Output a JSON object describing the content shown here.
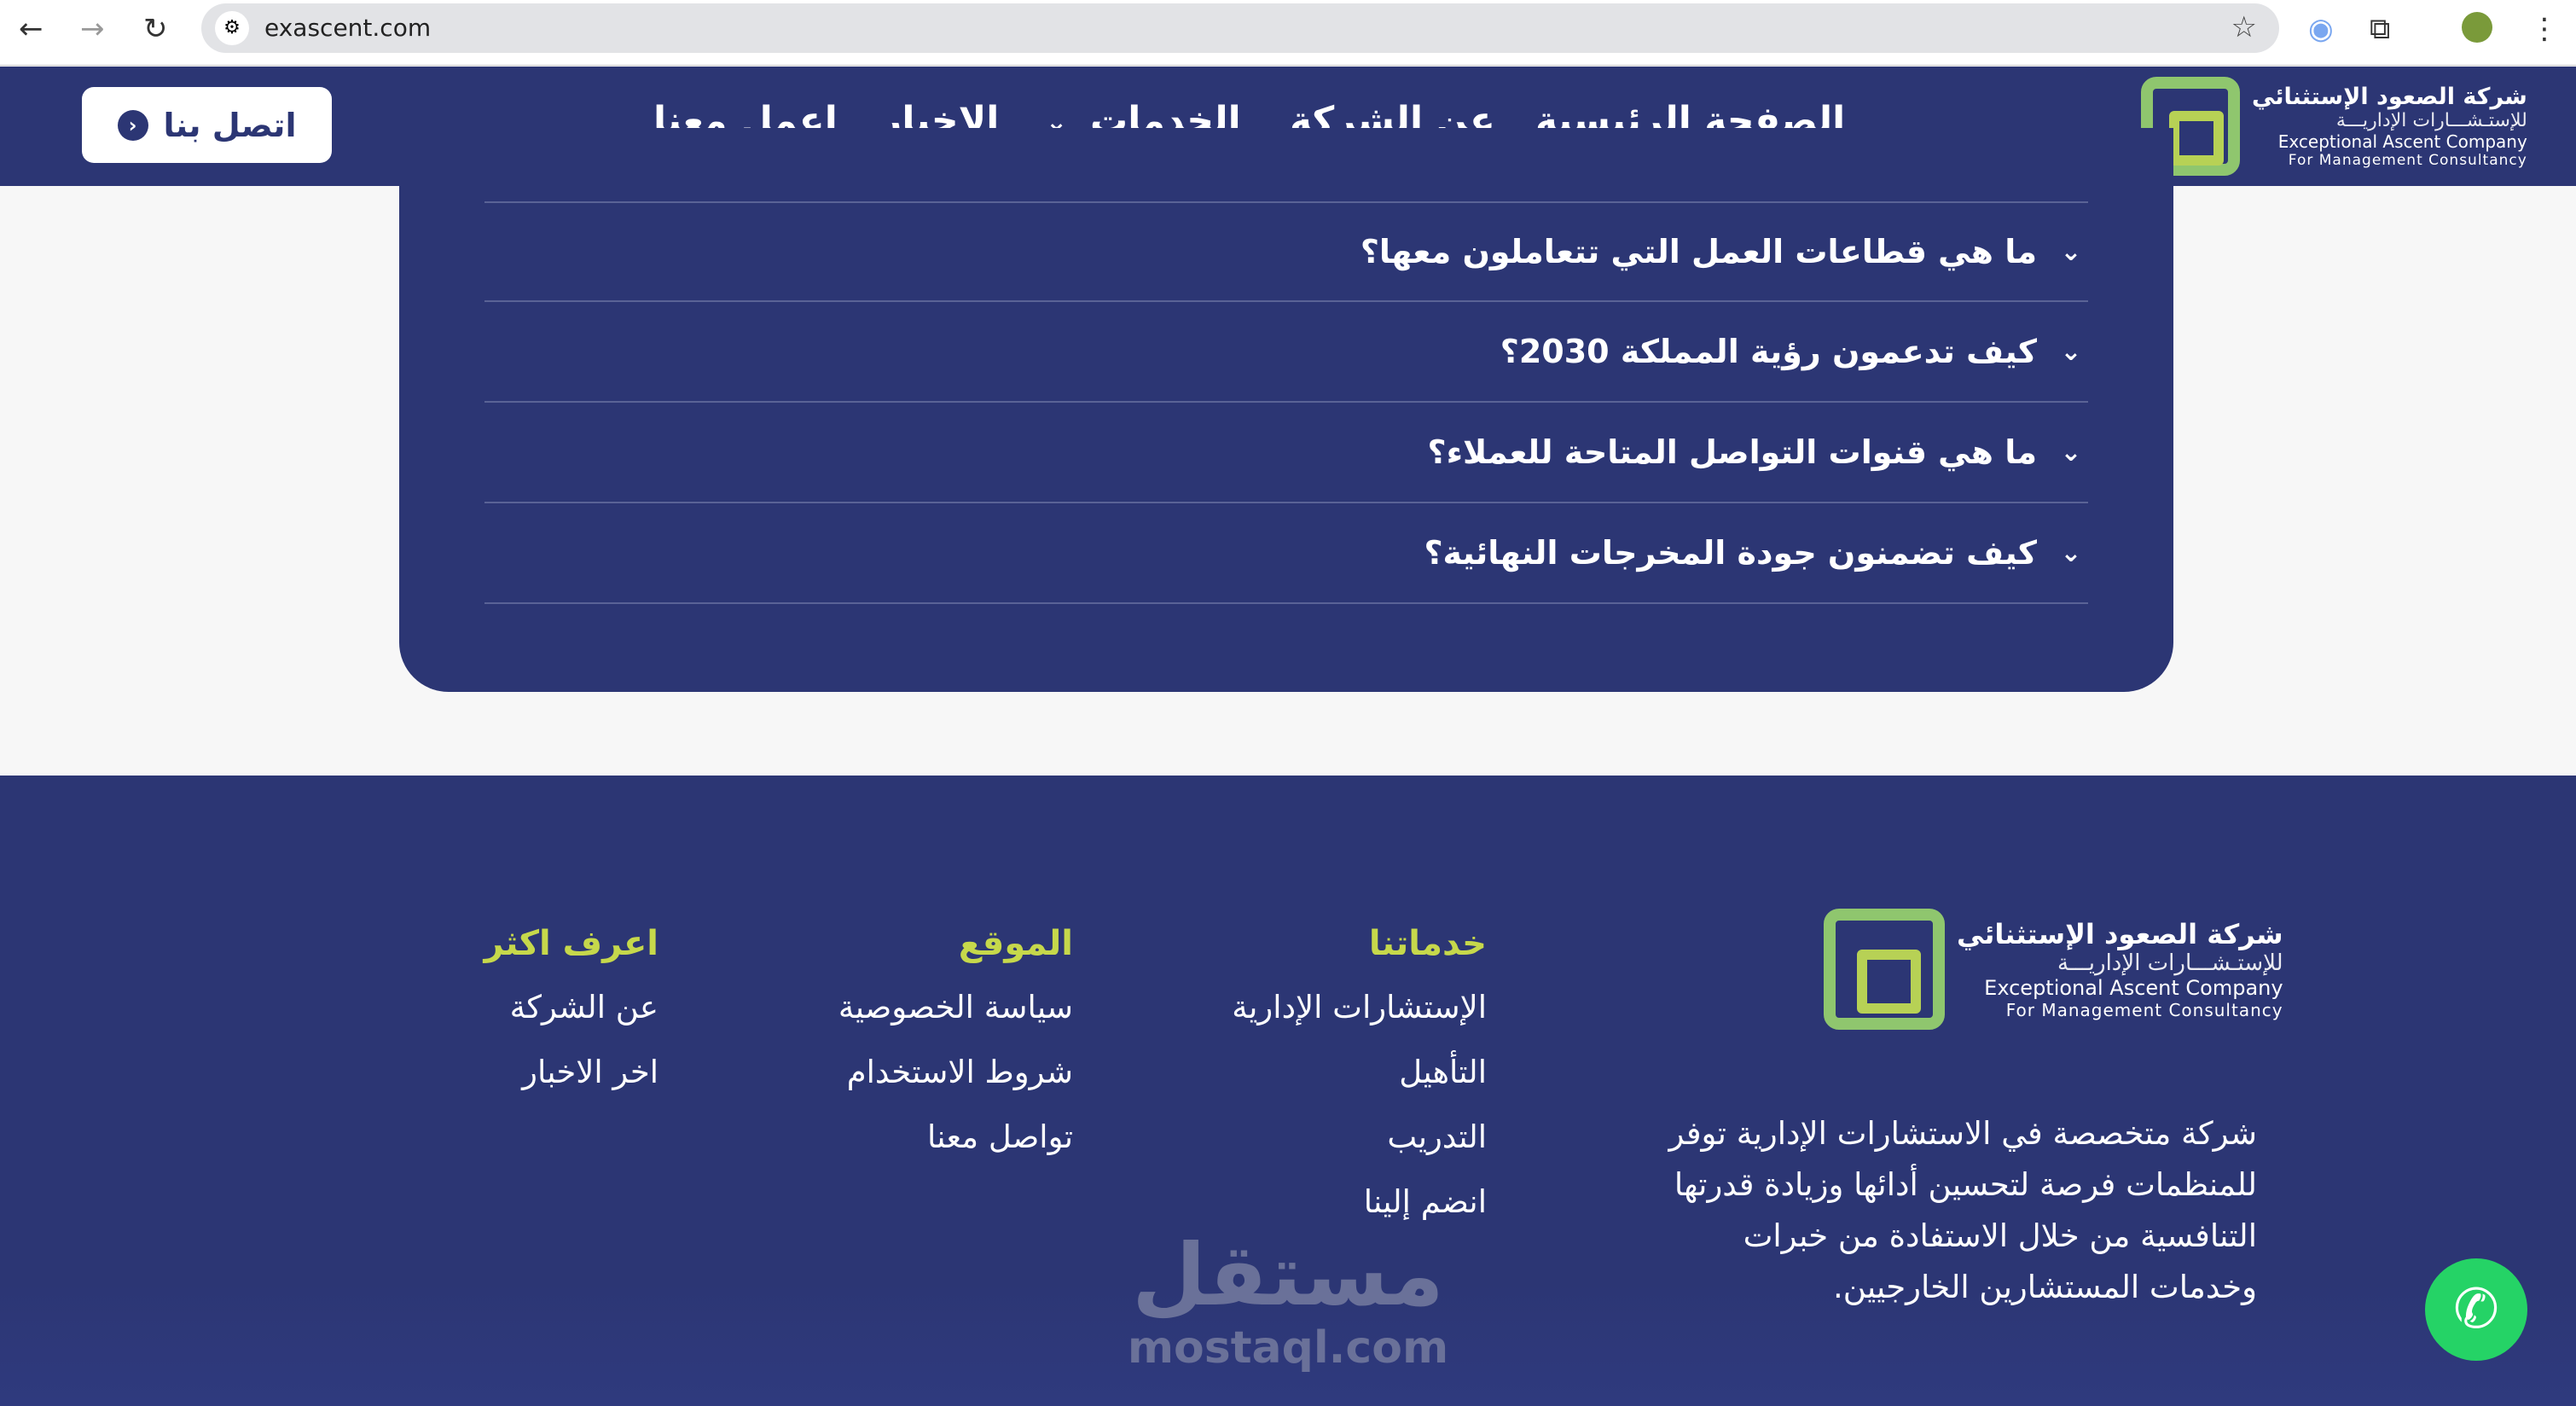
{
  "browser": {
    "url": "exascent.com",
    "icons": [
      "back-icon",
      "forward-icon",
      "reload-icon",
      "site-settings-icon",
      "bookmark-star-icon",
      "extension-icon",
      "puzzle-icon",
      "profile-avatar",
      "menu-icon"
    ]
  },
  "logo": {
    "ar_line1": "شركة الصعود الإستثنائي",
    "ar_line2": "للإستـشـــارات الإداريـــة",
    "en_line1": "Exceptional Ascent Company",
    "en_line2": "For Management Consultancy"
  },
  "nav": {
    "items": [
      "الصفحة الرئيسية",
      "عن الشركة",
      "الخدمات",
      "الاخبار",
      "اعمل معنا"
    ],
    "active": "الصفحة الرئيسية",
    "contact_button": "اتصل بنا"
  },
  "faq": [
    "ما هي قطاعات العمل التي تتعاملون معها؟",
    "كيف تدعمون رؤية المملكة 2030؟",
    "ما هي قنوات التواصل المتاحة للعملاء؟",
    "كيف تضمنون جودة المخرجات النهائية؟"
  ],
  "footer": {
    "description": "شركة متخصصة في الاستشارات الإدارية توفر للمنظمات فرصة لتحسين أدائها وزيادة قدرتها التنافسية من خلال الاستفادة من خبرات وخدمات المستشارين الخارجيين.",
    "columns": [
      {
        "title": "خدماتنا",
        "items": [
          "الإستشارات الإدارية",
          "التأهيل",
          "التدريب",
          "انضم إلينا"
        ]
      },
      {
        "title": "الموقع",
        "items": [
          "سياسة الخصوصية",
          "شروط الاستخدام",
          "تواصل معنا"
        ]
      },
      {
        "title": "اعرف اكثر",
        "items": [
          "عن الشركة",
          "اخر الاخبار"
        ]
      }
    ]
  },
  "watermark": {
    "ar": "مستقل",
    "en": "mostaql.com"
  },
  "colors": {
    "primary": "#2c3674",
    "accent": "#c6d84b",
    "whatsapp": "#25d366",
    "background": "#f7f7f7"
  }
}
